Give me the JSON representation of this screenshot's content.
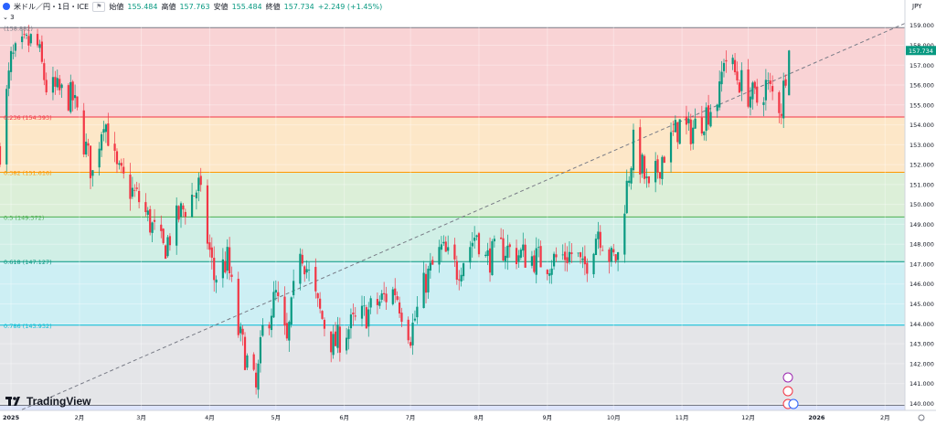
{
  "header": {
    "symbol": "米ドル／円・1日・ICE",
    "open_label": "始値",
    "open_value": "155.484",
    "high_label": "高値",
    "high_value": "157.763",
    "low_label": "安値",
    "low_value": "155.484",
    "close_label": "終値",
    "close_value": "157.734",
    "change": "+2.249 (+1.45%)",
    "collapse_icon": "chevron-down-icon",
    "indicator_count": "3"
  },
  "currency": "JPY",
  "price_tag": "157.734",
  "brand": "TradingView",
  "colors": {
    "up": "#089981",
    "down": "#f23645",
    "grid": "#f0f3fa",
    "axis_text": "#131722"
  },
  "chart_data": {
    "type": "candlestick",
    "title": "",
    "y_axis": {
      "min": 139.65,
      "max": 159.4,
      "ticks": [
        "140.000",
        "141.000",
        "142.000",
        "143.000",
        "144.000",
        "145.000",
        "146.000",
        "147.000",
        "148.000",
        "149.000",
        "150.000",
        "151.000",
        "152.000",
        "153.000",
        "154.000",
        "155.000",
        "156.000",
        "157.000",
        "158.000",
        "159.000"
      ]
    },
    "x_axis": {
      "start": "2024-12-27",
      "end": "2026-02-10",
      "ticks": [
        {
          "date": "2025-01-01",
          "label": "2025"
        },
        {
          "date": "2025-02-01",
          "label": "2月"
        },
        {
          "date": "2025-03-01",
          "label": "3月"
        },
        {
          "date": "2025-04-01",
          "label": "4月"
        },
        {
          "date": "2025-05-01",
          "label": "5月"
        },
        {
          "date": "2025-06-01",
          "label": "6月"
        },
        {
          "date": "2025-07-01",
          "label": "7月"
        },
        {
          "date": "2025-08-01",
          "label": "8月"
        },
        {
          "date": "2025-09-01",
          "label": "9月"
        },
        {
          "date": "2025-10-01",
          "label": "10月"
        },
        {
          "date": "2025-11-01",
          "label": "11月"
        },
        {
          "date": "2025-12-01",
          "label": "12月"
        },
        {
          "date": "2026-01-01",
          "label": "2026"
        },
        {
          "date": "2026-02-01",
          "label": "2月"
        }
      ]
    },
    "fib_levels": [
      {
        "label": "(158.882)",
        "value": 158.882,
        "line": "#787b86",
        "fill": "#f9d3d5"
      },
      {
        "label": "0.236 (154.393)",
        "value": 154.393,
        "line": "#f23645",
        "fill": "#fde7c8"
      },
      {
        "label": "0.382 (151.616)",
        "value": 151.616,
        "line": "#ff9800",
        "fill": "#dcefd8"
      },
      {
        "label": "0.5 (149.372)",
        "value": 149.372,
        "line": "#4caf50",
        "fill": "#d0efe6"
      },
      {
        "label": "0.618 (147.127)",
        "value": 147.127,
        "line": "#089981",
        "fill": "#cdeff4"
      },
      {
        "label": "0.786 (143.932)",
        "value": 143.932,
        "line": "#00bcd4",
        "fill": "#e4e5e8"
      },
      {
        "label": "",
        "value": 139.9,
        "line": "#787b86",
        "fill": "#dde4fb"
      }
    ],
    "trendline": {
      "from": {
        "date": "2024-12-29",
        "price": 139.3
      },
      "to": {
        "date": "2026-02-10",
        "price": 159.1
      }
    },
    "key_prices": [
      {
        "date": "2024-12-27",
        "price": 152.8
      },
      {
        "date": "2025-01-01",
        "price": 157.2
      },
      {
        "date": "2025-01-09",
        "price": 158.1
      },
      {
        "date": "2025-01-12",
        "price": 158.4
      },
      {
        "date": "2025-01-17",
        "price": 155.9
      },
      {
        "date": "2025-01-29",
        "price": 155.3
      },
      {
        "date": "2025-02-07",
        "price": 151.5
      },
      {
        "date": "2025-02-12",
        "price": 154.5
      },
      {
        "date": "2025-02-18",
        "price": 151.6
      },
      {
        "date": "2025-02-28",
        "price": 150.2
      },
      {
        "date": "2025-03-11",
        "price": 147.7
      },
      {
        "date": "2025-03-18",
        "price": 149.4
      },
      {
        "date": "2025-03-27",
        "price": 150.9
      },
      {
        "date": "2025-04-03",
        "price": 146.3
      },
      {
        "date": "2025-04-09",
        "price": 147.2
      },
      {
        "date": "2025-04-14",
        "price": 143.6
      },
      {
        "date": "2025-04-22",
        "price": 140.6
      },
      {
        "date": "2025-04-25",
        "price": 143.6
      },
      {
        "date": "2025-05-01",
        "price": 145.4
      },
      {
        "date": "2025-05-06",
        "price": 142.9
      },
      {
        "date": "2025-05-12",
        "price": 148.0
      },
      {
        "date": "2025-05-20",
        "price": 144.8
      },
      {
        "date": "2025-05-27",
        "price": 142.9
      },
      {
        "date": "2025-06-02",
        "price": 143.7
      },
      {
        "date": "2025-06-11",
        "price": 144.5
      },
      {
        "date": "2025-06-19",
        "price": 145.3
      },
      {
        "date": "2025-06-24",
        "price": 145.7
      },
      {
        "date": "2025-07-01",
        "price": 143.5
      },
      {
        "date": "2025-07-08",
        "price": 146.2
      },
      {
        "date": "2025-07-15",
        "price": 147.7
      },
      {
        "date": "2025-07-22",
        "price": 146.7
      },
      {
        "date": "2025-07-31",
        "price": 148.6
      },
      {
        "date": "2025-08-04",
        "price": 147.2
      },
      {
        "date": "2025-08-12",
        "price": 147.8
      },
      {
        "date": "2025-08-19",
        "price": 147.5
      },
      {
        "date": "2025-08-26",
        "price": 147.3
      },
      {
        "date": "2025-09-01",
        "price": 147.1
      },
      {
        "date": "2025-09-08",
        "price": 147.4
      },
      {
        "date": "2025-09-14",
        "price": 147.6
      },
      {
        "date": "2025-09-17",
        "price": 146.6
      },
      {
        "date": "2025-09-24",
        "price": 148.8
      },
      {
        "date": "2025-09-30",
        "price": 147.2
      },
      {
        "date": "2025-10-03",
        "price": 147.4
      },
      {
        "date": "2025-10-06",
        "price": 150.2
      },
      {
        "date": "2025-10-10",
        "price": 153.0
      },
      {
        "date": "2025-10-14",
        "price": 151.8
      },
      {
        "date": "2025-10-17",
        "price": 150.5
      },
      {
        "date": "2025-10-23",
        "price": 152.4
      },
      {
        "date": "2025-10-31",
        "price": 154.0
      },
      {
        "date": "2025-11-04",
        "price": 153.6
      },
      {
        "date": "2025-11-10",
        "price": 154.3
      },
      {
        "date": "2025-11-18",
        "price": 155.5
      },
      {
        "date": "2025-11-20",
        "price": 157.5
      },
      {
        "date": "2025-11-26",
        "price": 156.4
      },
      {
        "date": "2025-12-01",
        "price": 155.6
      },
      {
        "date": "2025-12-05",
        "price": 155.2
      },
      {
        "date": "2025-12-09",
        "price": 156.0
      },
      {
        "date": "2025-12-16",
        "price": 154.9
      },
      {
        "date": "2025-12-19",
        "price": 157.7
      }
    ]
  }
}
